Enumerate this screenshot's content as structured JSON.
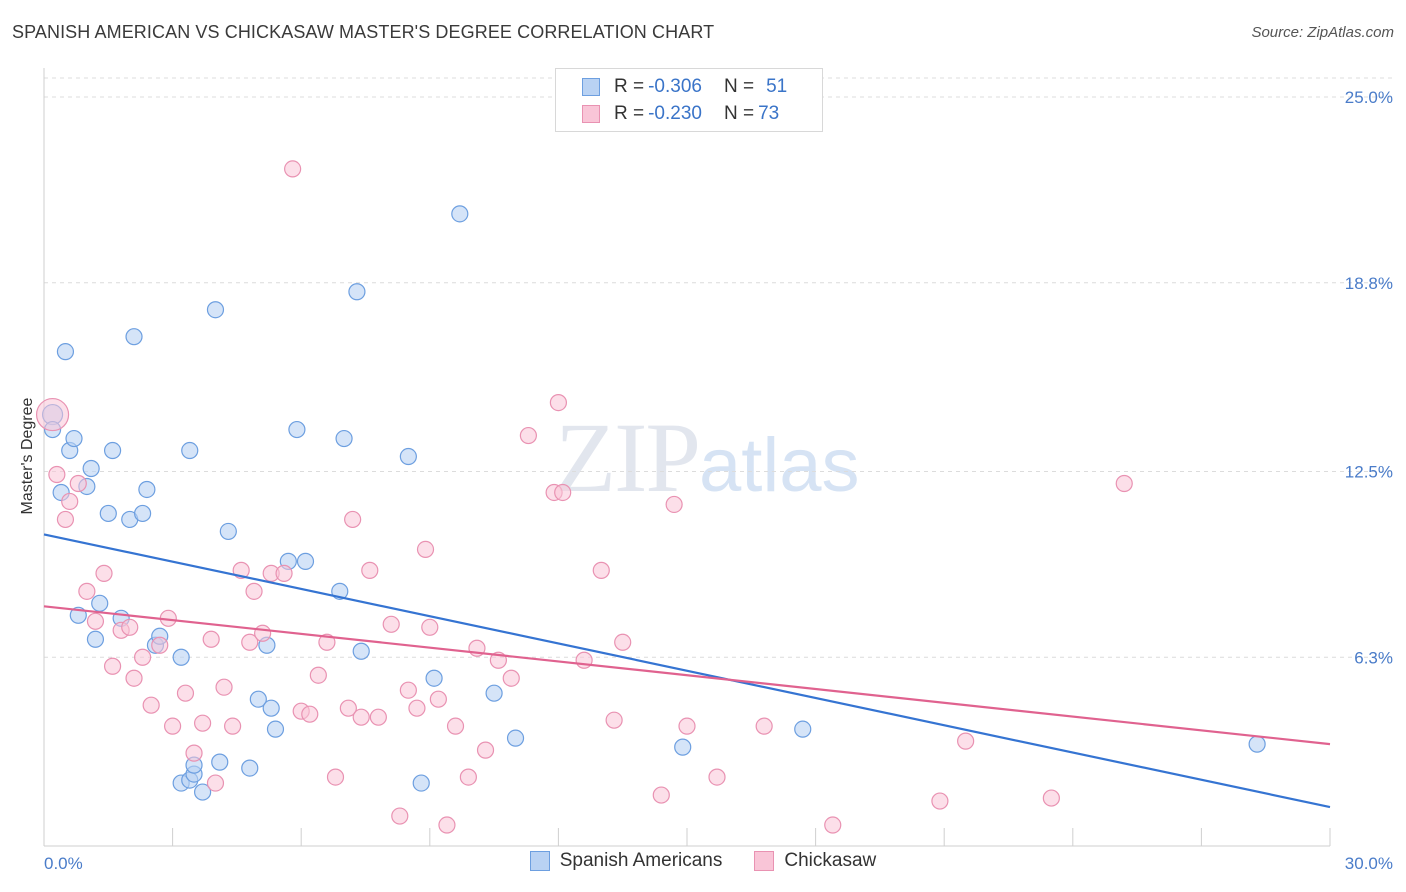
{
  "title": "SPANISH AMERICAN VS CHICKASAW MASTER'S DEGREE CORRELATION CHART",
  "source": "Source: ZipAtlas.com",
  "watermark": {
    "zip": "ZIP",
    "atlas": "atlas"
  },
  "legend": {
    "rows": [
      {
        "r_label": "R =",
        "r_value": "-0.306",
        "n_label": "N =",
        "n_value": "51"
      },
      {
        "r_label": "R =",
        "r_value": "-0.230",
        "n_label": "N =",
        "n_value": "73"
      }
    ]
  },
  "colors": {
    "spanish_fill": "#b9d2f3",
    "spanish_stroke": "#6d9fe0",
    "spanish_line": "#3574d2",
    "chickasaw_fill": "#f9c5d7",
    "chickasaw_stroke": "#e992b2",
    "chickasaw_line": "#e0628f",
    "grid": "#dcdcdc",
    "tick_label": "#4a7cc9"
  },
  "chart_data": {
    "type": "scatter",
    "ylabel": "Master's Degree",
    "x_tick_labels": [
      "0.0%",
      "30.0%"
    ],
    "y_tick_labels": [
      "25.0%",
      "18.8%",
      "12.5%",
      "6.3%"
    ],
    "y_ticks": [
      25.0,
      18.8,
      12.5,
      6.3
    ],
    "xlim": [
      0,
      30
    ],
    "ylim": [
      0,
      26
    ],
    "grid": true,
    "legend_position": "top-center",
    "series": [
      {
        "name": "Spanish Americans",
        "r": -0.306,
        "n": 51,
        "trend": {
          "x": [
            0,
            30
          ],
          "y": [
            10.4,
            1.3
          ]
        },
        "points": [
          [
            0.2,
            14.4
          ],
          [
            0.2,
            13.9
          ],
          [
            0.5,
            16.5
          ],
          [
            0.6,
            13.2
          ],
          [
            0.7,
            13.6
          ],
          [
            0.4,
            11.8
          ],
          [
            1.0,
            12.0
          ],
          [
            1.1,
            12.6
          ],
          [
            1.5,
            11.1
          ],
          [
            1.6,
            13.2
          ],
          [
            2.1,
            17.0
          ],
          [
            2.0,
            10.9
          ],
          [
            2.3,
            11.1
          ],
          [
            2.4,
            11.9
          ],
          [
            3.4,
            13.2
          ],
          [
            4.0,
            17.9
          ],
          [
            4.3,
            10.5
          ],
          [
            5.9,
            13.9
          ],
          [
            7.0,
            13.6
          ],
          [
            7.3,
            18.5
          ],
          [
            9.7,
            21.1
          ],
          [
            8.5,
            13.0
          ],
          [
            5.7,
            9.5
          ],
          [
            6.1,
            9.5
          ],
          [
            6.9,
            8.5
          ],
          [
            0.8,
            7.7
          ],
          [
            1.2,
            6.9
          ],
          [
            1.3,
            8.1
          ],
          [
            1.8,
            7.6
          ],
          [
            2.6,
            6.7
          ],
          [
            2.7,
            7.0
          ],
          [
            3.2,
            6.3
          ],
          [
            3.2,
            2.1
          ],
          [
            3.4,
            2.2
          ],
          [
            3.5,
            2.4
          ],
          [
            3.5,
            2.7
          ],
          [
            3.7,
            1.8
          ],
          [
            4.1,
            2.8
          ],
          [
            4.8,
            2.6
          ],
          [
            5.0,
            4.9
          ],
          [
            5.3,
            4.6
          ],
          [
            5.4,
            3.9
          ],
          [
            5.2,
            6.7
          ],
          [
            7.4,
            6.5
          ],
          [
            8.8,
            2.1
          ],
          [
            9.1,
            5.6
          ],
          [
            10.5,
            5.1
          ],
          [
            11.0,
            3.6
          ],
          [
            14.9,
            3.3
          ],
          [
            17.7,
            3.9
          ],
          [
            28.3,
            3.4
          ]
        ]
      },
      {
        "name": "Chickasaw",
        "r": -0.23,
        "n": 73,
        "trend": {
          "x": [
            0,
            30
          ],
          "y": [
            8.0,
            3.4
          ]
        },
        "points": [
          [
            0.2,
            14.4
          ],
          [
            0.3,
            12.4
          ],
          [
            0.5,
            10.9
          ],
          [
            0.6,
            11.5
          ],
          [
            0.8,
            12.1
          ],
          [
            1.0,
            8.5
          ],
          [
            1.2,
            7.5
          ],
          [
            1.4,
            9.1
          ],
          [
            1.6,
            6.0
          ],
          [
            1.8,
            7.2
          ],
          [
            2.0,
            7.3
          ],
          [
            2.1,
            5.6
          ],
          [
            2.3,
            6.3
          ],
          [
            2.5,
            4.7
          ],
          [
            2.7,
            6.7
          ],
          [
            2.9,
            7.6
          ],
          [
            3.0,
            4.0
          ],
          [
            3.3,
            5.1
          ],
          [
            3.5,
            3.1
          ],
          [
            3.7,
            4.1
          ],
          [
            3.9,
            6.9
          ],
          [
            4.0,
            2.1
          ],
          [
            4.2,
            5.3
          ],
          [
            4.4,
            4.0
          ],
          [
            4.6,
            9.2
          ],
          [
            4.8,
            6.8
          ],
          [
            4.9,
            8.5
          ],
          [
            5.1,
            7.1
          ],
          [
            5.3,
            9.1
          ],
          [
            5.6,
            9.1
          ],
          [
            5.8,
            22.6
          ],
          [
            6.0,
            4.5
          ],
          [
            6.2,
            4.4
          ],
          [
            6.4,
            5.7
          ],
          [
            6.6,
            6.8
          ],
          [
            6.8,
            2.3
          ],
          [
            7.1,
            4.6
          ],
          [
            7.2,
            10.9
          ],
          [
            7.4,
            4.3
          ],
          [
            7.6,
            9.2
          ],
          [
            7.8,
            4.3
          ],
          [
            8.1,
            7.4
          ],
          [
            8.3,
            1.0
          ],
          [
            8.5,
            5.2
          ],
          [
            8.7,
            4.6
          ],
          [
            8.9,
            9.9
          ],
          [
            9.0,
            7.3
          ],
          [
            9.2,
            4.9
          ],
          [
            9.4,
            0.7
          ],
          [
            9.6,
            4.0
          ],
          [
            9.9,
            2.3
          ],
          [
            10.1,
            6.6
          ],
          [
            10.3,
            3.2
          ],
          [
            10.6,
            6.2
          ],
          [
            10.9,
            5.6
          ],
          [
            11.3,
            13.7
          ],
          [
            11.9,
            11.8
          ],
          [
            12.0,
            14.8
          ],
          [
            12.1,
            11.8
          ],
          [
            12.6,
            6.2
          ],
          [
            13.0,
            9.2
          ],
          [
            13.3,
            4.2
          ],
          [
            13.5,
            6.8
          ],
          [
            14.4,
            1.7
          ],
          [
            14.7,
            11.4
          ],
          [
            15.0,
            4.0
          ],
          [
            15.7,
            2.3
          ],
          [
            16.8,
            4.0
          ],
          [
            18.4,
            0.7
          ],
          [
            20.9,
            1.5
          ],
          [
            21.5,
            3.5
          ],
          [
            23.5,
            1.6
          ],
          [
            25.2,
            12.1
          ]
        ]
      }
    ]
  },
  "bottom_legend": [
    {
      "label": "Spanish Americans"
    },
    {
      "label": "Chickasaw"
    }
  ]
}
